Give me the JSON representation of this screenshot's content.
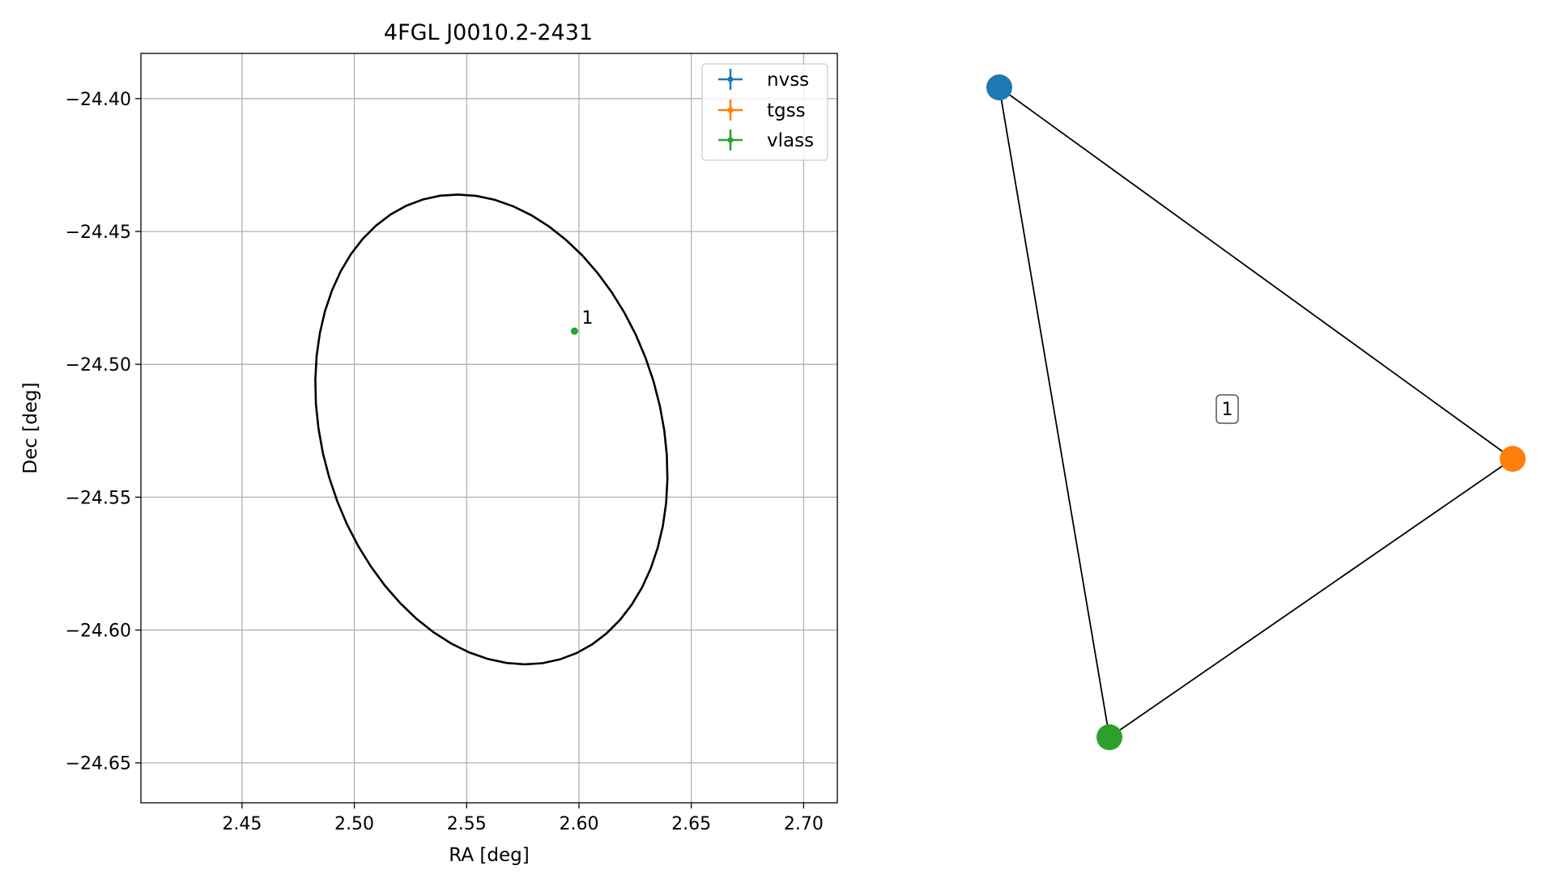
{
  "chart_data": [
    {
      "type": "scatter",
      "title": "4FGL J0010.2-2431",
      "xlabel": "RA [deg]",
      "ylabel": "Dec [deg]",
      "xlim": [
        2.405,
        2.715
      ],
      "ylim": [
        -24.665,
        -24.383
      ],
      "grid": true,
      "legend_position": "top-right",
      "x_ticks": [
        2.45,
        2.5,
        2.55,
        2.6,
        2.65,
        2.7
      ],
      "x_tick_labels": [
        "2.45",
        "2.50",
        "2.55",
        "2.60",
        "2.65",
        "2.70"
      ],
      "y_ticks": [
        -24.4,
        -24.45,
        -24.5,
        -24.55,
        -24.6,
        -24.65
      ],
      "y_tick_labels": [
        "−24.40",
        "−24.45",
        "−24.50",
        "−24.55",
        "−24.60",
        "−24.65"
      ],
      "ellipse": {
        "center_ra": 2.561,
        "center_dec": -24.5245,
        "semi_axis_a": 0.0925,
        "semi_axis_b": 0.0735,
        "angle_deg": -61,
        "color": "#000000"
      },
      "series": [
        {
          "name": "nvss",
          "color": "#1f77b4",
          "points": []
        },
        {
          "name": "tgss",
          "color": "#ff7f0e",
          "points": []
        },
        {
          "name": "vlass",
          "color": "#2ca02c",
          "points": [
            {
              "ra": 2.598,
              "dec": -24.4875,
              "label": "1"
            }
          ]
        }
      ]
    },
    {
      "type": "network",
      "nodes": [
        {
          "id": "nvss",
          "color": "#1f77b4"
        },
        {
          "id": "tgss",
          "color": "#ff7f0e"
        },
        {
          "id": "vlass",
          "color": "#2ca02c"
        }
      ],
      "edges": [
        [
          "nvss",
          "tgss"
        ],
        [
          "tgss",
          "vlass"
        ],
        [
          "vlass",
          "nvss"
        ]
      ],
      "region_labels": [
        "1"
      ]
    }
  ]
}
